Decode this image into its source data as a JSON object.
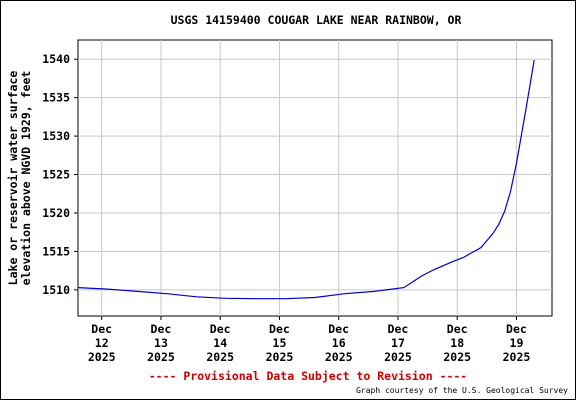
{
  "chart_data": {
    "type": "line",
    "title": "USGS 14159400 COUGAR LAKE NEAR RAINBOW, OR",
    "ylabel_lines": [
      "Lake or reservoir water surface",
      "elevation above NGVD 1929, feet"
    ],
    "xlabel": "",
    "y_ticks": [
      1510,
      1515,
      1520,
      1525,
      1530,
      1535,
      1540
    ],
    "ylim": [
      1506.6,
      1542.5
    ],
    "xlim": [
      0,
      8.0
    ],
    "x_ticks": [
      {
        "x": 0.4,
        "lines": [
          "Dec",
          "12",
          "2025"
        ]
      },
      {
        "x": 1.4,
        "lines": [
          "Dec",
          "13",
          "2025"
        ]
      },
      {
        "x": 2.4,
        "lines": [
          "Dec",
          "14",
          "2025"
        ]
      },
      {
        "x": 3.4,
        "lines": [
          "Dec",
          "15",
          "2025"
        ]
      },
      {
        "x": 4.4,
        "lines": [
          "Dec",
          "16",
          "2025"
        ]
      },
      {
        "x": 5.4,
        "lines": [
          "Dec",
          "17",
          "2025"
        ]
      },
      {
        "x": 6.4,
        "lines": [
          "Dec",
          "18",
          "2025"
        ]
      },
      {
        "x": 7.4,
        "lines": [
          "Dec",
          "19",
          "2025"
        ]
      }
    ],
    "grid": true,
    "series": [
      {
        "color": "#0000cc",
        "x": [
          0.0,
          0.5,
          1.0,
          1.5,
          2.0,
          2.5,
          3.0,
          3.5,
          4.0,
          4.5,
          5.0,
          5.2,
          5.5,
          5.8,
          6.0,
          6.3,
          6.5,
          6.8,
          7.0,
          7.1,
          7.2,
          7.3,
          7.4,
          7.55,
          7.7
        ],
        "y": [
          1510.3,
          1510.1,
          1509.8,
          1509.5,
          1509.1,
          1508.9,
          1508.85,
          1508.85,
          1509.0,
          1509.5,
          1509.8,
          1510.0,
          1510.3,
          1511.8,
          1512.6,
          1513.6,
          1514.2,
          1515.5,
          1517.3,
          1518.5,
          1520.2,
          1522.8,
          1526.5,
          1533.0,
          1539.9
        ]
      }
    ]
  },
  "footer": {
    "provisional": "---- Provisional Data Subject to Revision ----",
    "credit": "Graph courtesy of the U.S. Geological Survey"
  }
}
